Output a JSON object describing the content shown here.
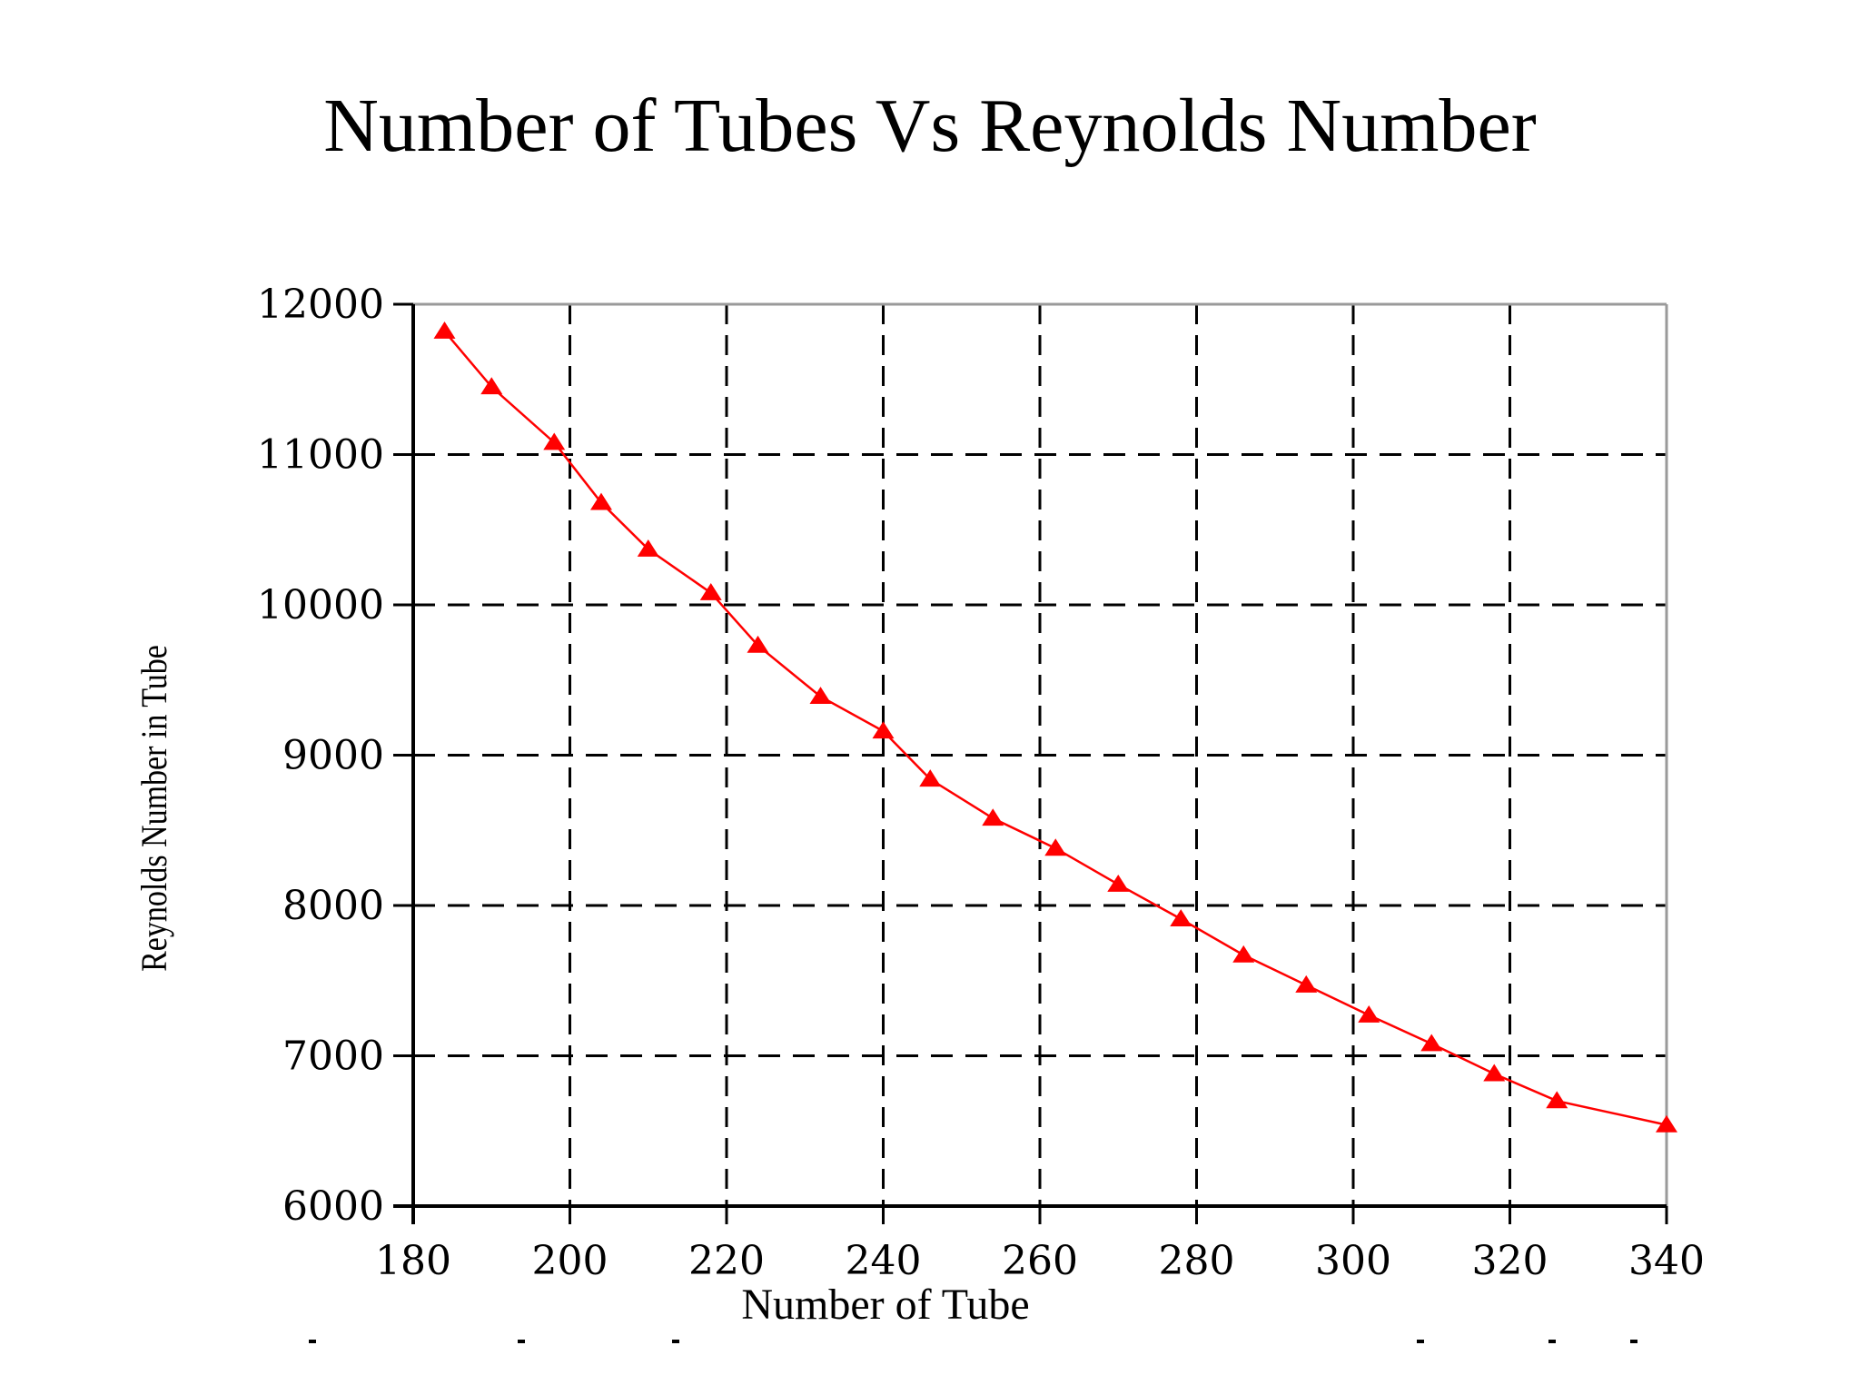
{
  "page": {
    "title": "Number of Tubes Vs Reynolds Number"
  },
  "chart_data": {
    "type": "line",
    "title": "Number of Tubes Vs Reynolds Number",
    "xlabel": "Number of Tube",
    "ylabel": "Reynolds Number in Tube",
    "xlim": [
      180,
      340
    ],
    "ylim": [
      6000,
      12000
    ],
    "xticks": [
      "180",
      "200",
      "220",
      "240",
      "260",
      "280",
      "300",
      "320",
      "340"
    ],
    "yticks": [
      "6000",
      "7000",
      "8000",
      "9000",
      "10000",
      "11000",
      "12000"
    ],
    "grid": true,
    "series_color": "#ff0000",
    "marker": "triangle",
    "series": [
      {
        "name": "Reynolds Number in Tube",
        "x": [
          184,
          190,
          198,
          204,
          210,
          218,
          224,
          232,
          240,
          246,
          254,
          262,
          270,
          278,
          286,
          294,
          302,
          310,
          318,
          326,
          340
        ],
        "y": [
          11820,
          11450,
          11080,
          10680,
          10370,
          10080,
          9730,
          9390,
          9160,
          8840,
          8580,
          8380,
          8140,
          7910,
          7670,
          7470,
          7270,
          7080,
          6880,
          6700,
          6540
        ]
      }
    ]
  }
}
